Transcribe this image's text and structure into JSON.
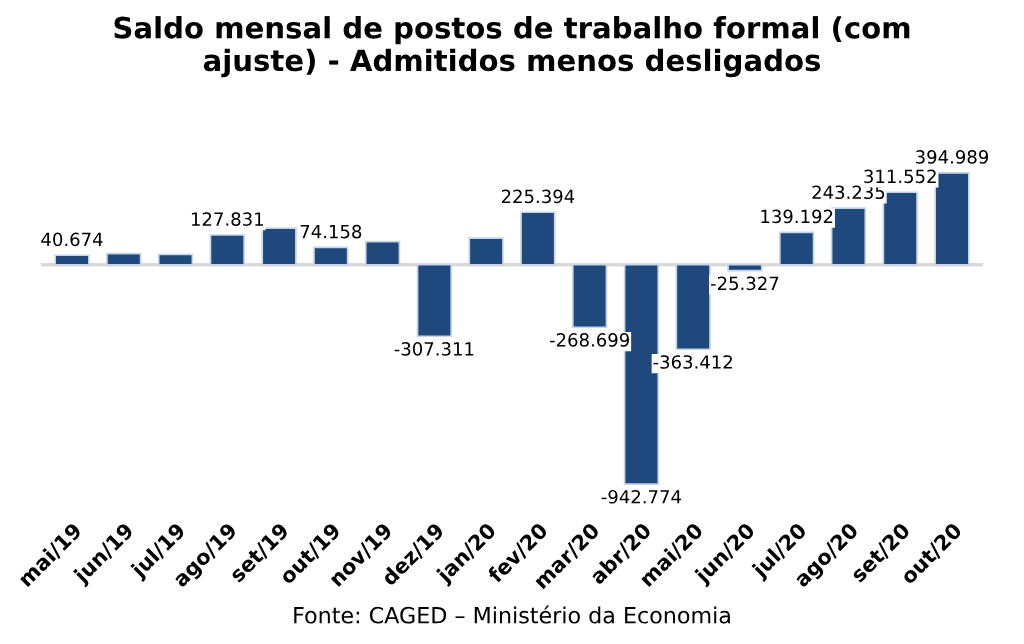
{
  "chart_data": {
    "type": "bar",
    "title": "Saldo mensal de postos de trabalho formal (com\najuste) - Admitidos menos desligados",
    "categories": [
      "mai/19",
      "jun/19",
      "jul/19",
      "ago/19",
      "set/19",
      "out/19",
      "nov/19",
      "dez/19",
      "jan/20",
      "fev/20",
      "mar/20",
      "abr/20",
      "mai/20",
      "jun/20",
      "jul/20",
      "ago/20",
      "set/20",
      "out/20"
    ],
    "values": [
      40674,
      48000,
      44000,
      127831,
      157000,
      74158,
      99000,
      -307311,
      114000,
      225394,
      -268699,
      -942774,
      -363412,
      -25327,
      139192,
      243235,
      311552,
      394989
    ],
    "value_labels": [
      "40.674",
      null,
      null,
      "127.831",
      null,
      "74.158",
      null,
      "-307.311",
      null,
      "225.394",
      "-268.699",
      "-942.774",
      "-363.412",
      "-25.327",
      "139.192",
      "243.235",
      "311.552",
      "394.989"
    ],
    "color": "#1f497d",
    "tick_labels": "x",
    "grid": false,
    "legend": false,
    "annotations": [
      "Fonte: CAGED – Ministério da Economia"
    ]
  }
}
